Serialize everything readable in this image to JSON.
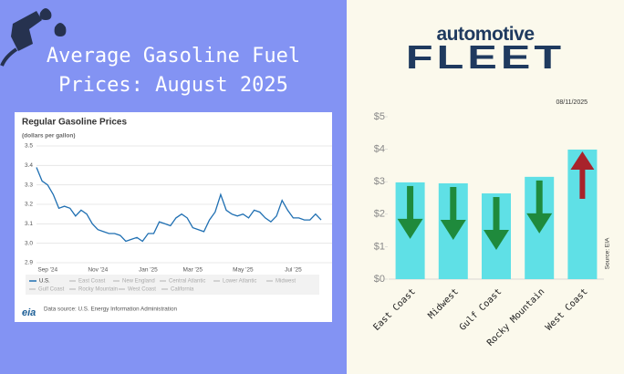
{
  "title": "Average Gasoline Fuel Prices: August 2025",
  "logo": {
    "top": "automotive",
    "bottom": "FLEET"
  },
  "chart_data": [
    {
      "type": "line",
      "title": "Regular Gasoline Prices",
      "subtitle": "(dollars per gallon)",
      "categories": [
        null,
        null,
        "Sep '24",
        null,
        null,
        null,
        null,
        null,
        null,
        null,
        null,
        "Nov '24",
        null,
        null,
        null,
        null,
        null,
        null,
        null,
        null,
        "Jan '25",
        null,
        null,
        null,
        null,
        null,
        null,
        null,
        "Mar '25",
        null,
        null,
        null,
        null,
        null,
        null,
        null,
        null,
        "May '25",
        null,
        null,
        null,
        null,
        null,
        null,
        null,
        null,
        "Jul '25",
        null,
        null,
        null,
        null,
        null
      ],
      "series": [
        {
          "name": "U.S.",
          "color": "#1f6fb2",
          "values": [
            3.39,
            3.32,
            3.3,
            3.25,
            3.18,
            3.19,
            3.18,
            3.14,
            3.17,
            3.15,
            3.1,
            3.07,
            3.06,
            3.05,
            3.05,
            3.04,
            3.01,
            3.02,
            3.03,
            3.01,
            3.05,
            3.05,
            3.11,
            3.1,
            3.09,
            3.13,
            3.15,
            3.13,
            3.08,
            3.07,
            3.06,
            3.12,
            3.16,
            3.25,
            3.17,
            3.15,
            3.14,
            3.15,
            3.13,
            3.17,
            3.16,
            3.13,
            3.11,
            3.14,
            3.22,
            3.17,
            3.13,
            3.13,
            3.12,
            3.12,
            3.15,
            3.12
          ]
        }
      ],
      "legend_inactive": [
        "East Coast",
        "New England",
        "Central Atlantic",
        "Lower Atlantic",
        "Midwest",
        "Gulf Coast",
        "Rocky Mountain",
        "West Coast",
        "California"
      ],
      "ylim": [
        2.9,
        3.5
      ],
      "yticks": [
        2.9,
        {
          "value": 3,
          "label": "3.0"
        },
        3.1,
        3.2,
        3.3,
        3.4,
        3.5
      ],
      "grid": true,
      "source": "Data source: U.S. Energy Information Administration",
      "source_logo": "eia"
    },
    {
      "type": "bar",
      "date": "08/11/2025",
      "source": "Source: EIA",
      "categories": [
        "East Coast",
        "Midwest",
        "Gulf Coast",
        "Rocky Mountain",
        "West Coast"
      ],
      "values": [
        2.98,
        2.95,
        2.64,
        3.15,
        3.99
      ],
      "color": "#5fe0e6",
      "arrows": [
        "down",
        "down",
        "down",
        "down",
        "up"
      ],
      "arrow_colors": {
        "down": "#1f8a3c",
        "up": "#a8232b"
      },
      "ylim": [
        0,
        5
      ],
      "yticks": [
        {
          "value": 0,
          "label": "$0"
        },
        {
          "value": 1,
          "label": "$1"
        },
        {
          "value": 2,
          "label": "$2"
        },
        {
          "value": 3,
          "label": "$3"
        },
        {
          "value": 4,
          "label": "$4"
        },
        {
          "value": 5,
          "label": "$5"
        }
      ],
      "grid": false
    }
  ]
}
